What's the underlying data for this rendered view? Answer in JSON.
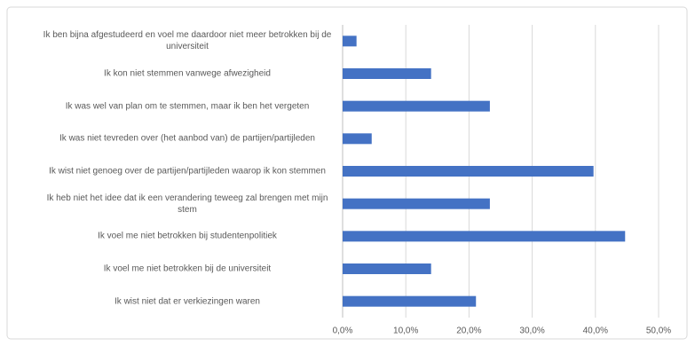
{
  "chart_data": {
    "type": "bar",
    "orientation": "horizontal",
    "categories": [
      "Ik ben bijna afgestudeerd en voel me daardoor niet meer betrokken bij de universiteit",
      "Ik kon niet stemmen vanwege afwezigheid",
      "Ik was wel van plan om te stemmen, maar ik ben het vergeten",
      "Ik was niet tevreden over (het aanbod van) de partijen/partijleden",
      "Ik wist niet genoeg over de partijen/partijleden waarop ik kon stemmen",
      "Ik heb niet het idee dat ik een verandering teweeg zal brengen met mijn stem",
      "Ik voel me niet betrokken bij studentenpolitiek",
      "Ik voel me niet betrokken bij de universiteit",
      "Ik wist niet dat er verkiezingen waren"
    ],
    "values": [
      2.2,
      14.0,
      23.3,
      4.6,
      39.7,
      23.3,
      44.7,
      14.0,
      21.1
    ],
    "color": "#4472c4",
    "xlim": [
      0,
      50
    ],
    "xticks": [
      {
        "value": 0,
        "label": "0,0%"
      },
      {
        "value": 10,
        "label": "10,0%"
      },
      {
        "value": 20,
        "label": "20,0%"
      },
      {
        "value": 30,
        "label": "30,0%"
      },
      {
        "value": 40,
        "label": "40,0%"
      },
      {
        "value": 50,
        "label": "50,0%"
      }
    ],
    "grid": true
  }
}
